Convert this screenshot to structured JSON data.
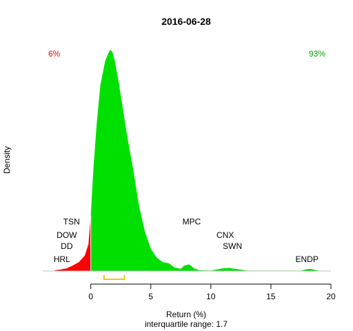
{
  "chart_data": {
    "type": "area",
    "title": "2016-06-28",
    "xlabel": "Return (%)",
    "ylabel": "Density",
    "subtitle": "interquartile range: 1.7",
    "xlim": [
      -4,
      20
    ],
    "x_ticks": [
      "0",
      "5",
      "10",
      "15",
      "20"
    ],
    "y_ticks": [],
    "grid": false,
    "legend": "none",
    "corner_labels": {
      "left": {
        "text": "6%",
        "color": "#ff0000"
      },
      "right": {
        "text": "93%",
        "color": "#00aa00"
      }
    },
    "colors": {
      "negative_fill": "#ff0000",
      "positive_fill": "#00e000",
      "iqr_bracket": "#ffc000",
      "baseline": "#c0c0c0"
    },
    "density": {
      "x": [
        -3.0,
        -2.5,
        -2.0,
        -1.5,
        -1.0,
        -0.5,
        -0.2,
        0.0,
        0.2,
        0.5,
        0.8,
        1.2,
        1.6,
        1.8,
        2.0,
        2.3,
        2.6,
        3.0,
        3.5,
        4.0,
        4.5,
        5.0,
        5.5,
        6.0,
        6.5,
        7.0,
        7.5,
        7.8,
        8.2,
        8.6,
        9.0,
        10.0,
        11.0,
        11.5,
        12.0,
        13.0,
        17.5,
        18.0,
        18.3,
        18.6,
        19.0
      ],
      "y": [
        0.003,
        0.007,
        0.012,
        0.025,
        0.04,
        0.07,
        0.12,
        0.25,
        0.45,
        0.67,
        0.84,
        0.95,
        1.0,
        0.99,
        0.95,
        0.86,
        0.76,
        0.62,
        0.47,
        0.3,
        0.18,
        0.1,
        0.06,
        0.04,
        0.035,
        0.015,
        0.01,
        0.025,
        0.03,
        0.012,
        0.004,
        0.002,
        0.012,
        0.014,
        0.01,
        0.002,
        0.002,
        0.008,
        0.01,
        0.006,
        0.002
      ]
    },
    "iqr": [
      1.1,
      2.8
    ],
    "annotations": [
      {
        "text": "TSN",
        "x": -1.6,
        "y": 0.21
      },
      {
        "text": "DOW",
        "x": -2.0,
        "y": 0.15
      },
      {
        "text": "DD",
        "x": -2.0,
        "y": 0.1
      },
      {
        "text": "HRL",
        "x": -2.4,
        "y": 0.04
      },
      {
        "text": "MPC",
        "x": 8.4,
        "y": 0.21
      },
      {
        "text": "CNX",
        "x": 11.2,
        "y": 0.15
      },
      {
        "text": "SWN",
        "x": 11.8,
        "y": 0.1
      },
      {
        "text": "ENDP",
        "x": 18.0,
        "y": 0.04
      }
    ]
  }
}
